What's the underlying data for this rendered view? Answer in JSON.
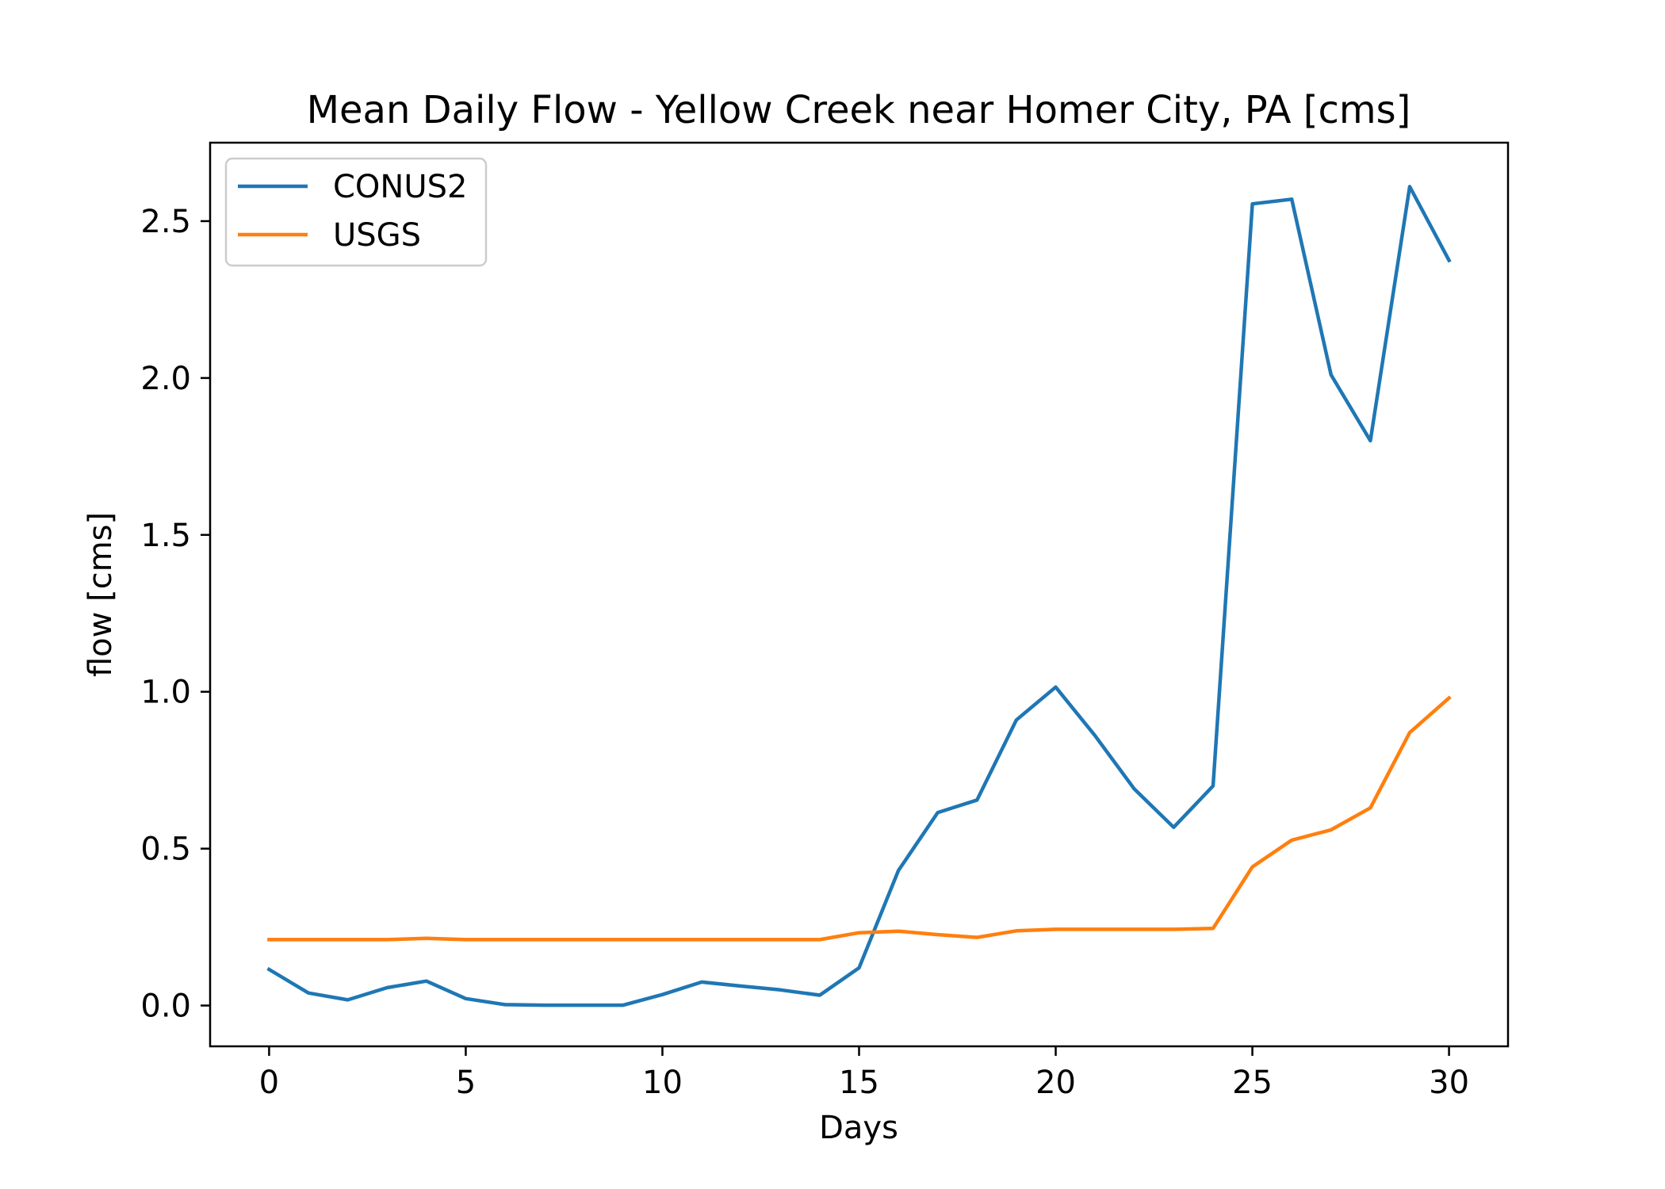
{
  "chart_data": {
    "type": "line",
    "title": "Mean Daily Flow - Yellow Creek near Homer City, PA [cms]",
    "xlabel": "Days",
    "ylabel": "flow [cms]",
    "xlim": [
      -1.5,
      31.5
    ],
    "ylim": [
      -0.13,
      2.75
    ],
    "xticks": [
      0,
      5,
      10,
      15,
      20,
      25,
      30
    ],
    "xtick_labels": [
      "0",
      "5",
      "10",
      "15",
      "20",
      "25",
      "30"
    ],
    "yticks": [
      0.0,
      0.5,
      1.0,
      1.5,
      2.0,
      2.5
    ],
    "ytick_labels": [
      "0.0",
      "0.5",
      "1.0",
      "1.5",
      "2.0",
      "2.5"
    ],
    "grid": false,
    "legend_position": "upper-left",
    "x": [
      0,
      1,
      2,
      3,
      4,
      5,
      6,
      7,
      8,
      9,
      10,
      11,
      12,
      13,
      14,
      15,
      16,
      17,
      18,
      19,
      20,
      21,
      22,
      23,
      24,
      25,
      26,
      27,
      28,
      29,
      30
    ],
    "series": [
      {
        "name": "CONUS2",
        "color": "#1f77b4",
        "values": [
          0.115,
          0.04,
          0.018,
          0.057,
          0.078,
          0.022,
          0.003,
          0.001,
          0.001,
          0.001,
          0.035,
          0.075,
          0.062,
          0.05,
          0.033,
          0.12,
          0.43,
          0.615,
          0.655,
          0.91,
          1.015,
          0.86,
          0.69,
          0.568,
          0.7,
          2.555,
          2.57,
          2.01,
          1.8,
          2.61,
          2.375
        ]
      },
      {
        "name": "USGS",
        "color": "#ff7f0e",
        "values": [
          0.21,
          0.21,
          0.21,
          0.21,
          0.214,
          0.21,
          0.21,
          0.21,
          0.21,
          0.21,
          0.21,
          0.21,
          0.21,
          0.21,
          0.21,
          0.232,
          0.237,
          0.226,
          0.217,
          0.238,
          0.243,
          0.243,
          0.243,
          0.243,
          0.246,
          0.442,
          0.527,
          0.56,
          0.63,
          0.87,
          0.98
        ]
      }
    ]
  }
}
